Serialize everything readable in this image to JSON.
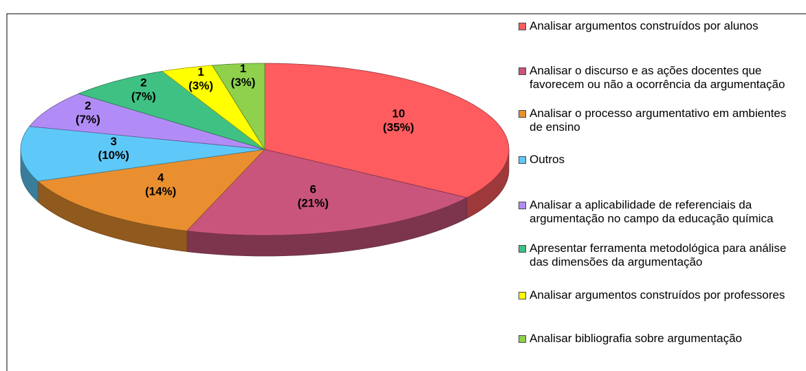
{
  "chart_data": {
    "type": "pie3d",
    "categories": [
      "Analisar argumentos construídos por alunos",
      "Analisar o discurso e as ações docentes que favorecem ou não a ocorrência da argumentação",
      "Analisar o processo argumentativo em ambientes de ensino",
      "Outros",
      "Analisar a aplicabilidade de referenciais da argumentação no campo da educação química",
      "Apresentar ferramenta metodológica para análise das dimensões da argumentação",
      "Analisar argumentos construídos por professores",
      "Analisar bibliografia sobre argumentação"
    ],
    "values": [
      10,
      6,
      4,
      3,
      2,
      2,
      1,
      1
    ],
    "percentages": [
      35,
      21,
      14,
      10,
      7,
      7,
      3,
      3
    ],
    "percentage_labels": [
      "(35%)",
      "(21%)",
      "(14%)",
      "(10%)",
      "(7%)",
      "(7%)",
      "(3%)",
      "(3%)"
    ],
    "colors": [
      "#ff5c5f",
      "#c9557d",
      "#e98f30",
      "#5ec9f8",
      "#b28cf6",
      "#3fc183",
      "#ffff00",
      "#8fd14d"
    ],
    "legend": "right"
  }
}
